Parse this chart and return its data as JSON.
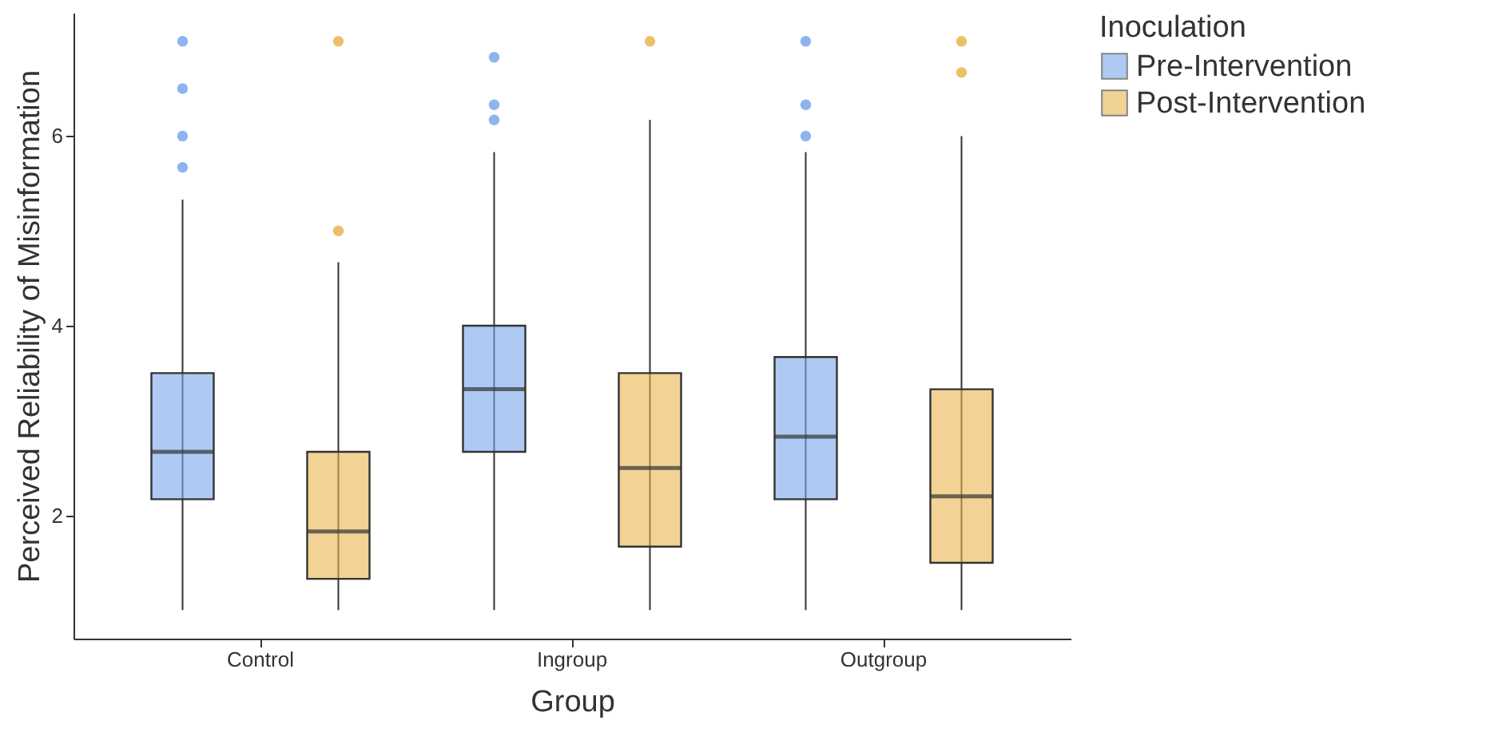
{
  "chart_data": {
    "type": "box",
    "xlabel": "Group",
    "ylabel": "Perceived Reliability of Misinformation",
    "legend_title": "Inoculation",
    "legend": "right",
    "grid": false,
    "categories": [
      "Control",
      "Ingroup",
      "Outgroup"
    ],
    "ylim": [
      0.7,
      7.3
    ],
    "yticks": [
      2,
      4,
      6
    ],
    "series": [
      {
        "name": "Pre-Intervention",
        "color": "#7aa7ea",
        "boxes": [
          {
            "low": 1,
            "q1": 2.17,
            "median": 2.67,
            "q3": 3.5,
            "high": 5.33,
            "outliers": [
              5.67,
              6,
              6.5,
              7
            ]
          },
          {
            "low": 1,
            "q1": 2.67,
            "median": 3.33,
            "q3": 4,
            "high": 5.83,
            "outliers": [
              6.17,
              6.33,
              6.83
            ]
          },
          {
            "low": 1,
            "q1": 2.17,
            "median": 2.83,
            "q3": 3.67,
            "high": 5.83,
            "outliers": [
              6,
              6.33,
              7
            ]
          }
        ]
      },
      {
        "name": "Post-Intervention",
        "color": "#e9b54f",
        "boxes": [
          {
            "low": 1,
            "q1": 1.33,
            "median": 1.83,
            "q3": 2.67,
            "high": 4.67,
            "outliers": [
              5,
              7
            ]
          },
          {
            "low": 1,
            "q1": 1.67,
            "median": 2.5,
            "q3": 3.5,
            "high": 6.17,
            "outliers": [
              7
            ]
          },
          {
            "low": 1,
            "q1": 1.5,
            "median": 2.2,
            "q3": 3.33,
            "high": 6,
            "outliers": [
              6.67,
              7
            ]
          }
        ]
      }
    ]
  }
}
